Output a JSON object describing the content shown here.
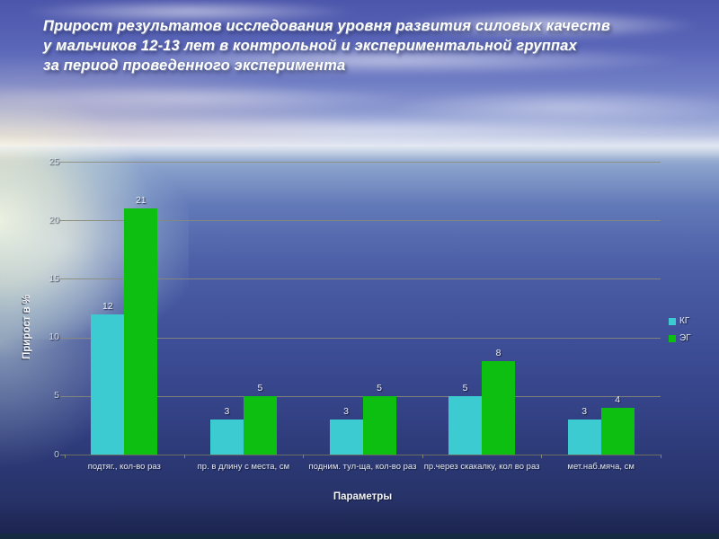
{
  "slide": {
    "title_lines": [
      "Прирост результатов исследования уровня развития силовых качеств",
      "у мальчиков 12-13 лет  в контрольной и экспериментальной группах",
      "за период проведенного  эксперимента"
    ]
  },
  "chart_data": {
    "type": "bar",
    "title": "",
    "xlabel": "Параметры",
    "ylabel": "Прирост в %",
    "ylim": [
      0,
      25
    ],
    "yticks": [
      0,
      5,
      10,
      15,
      20,
      25
    ],
    "grid": true,
    "legend_position": "right",
    "data_labels": true,
    "categories": [
      "подтяг., кол-во раз",
      "пр. в длину с места, см",
      "подним. тул-ща, кол-во раз",
      "пр.через скакалку, кол во раз",
      "мет.наб.мяча, см"
    ],
    "series": [
      {
        "name": "КГ",
        "color": "#3BCBD1",
        "values": [
          12,
          3,
          3,
          5,
          3
        ]
      },
      {
        "name": "ЭГ",
        "color": "#0CBF10",
        "values": [
          21,
          5,
          5,
          8,
          4
        ]
      }
    ]
  }
}
